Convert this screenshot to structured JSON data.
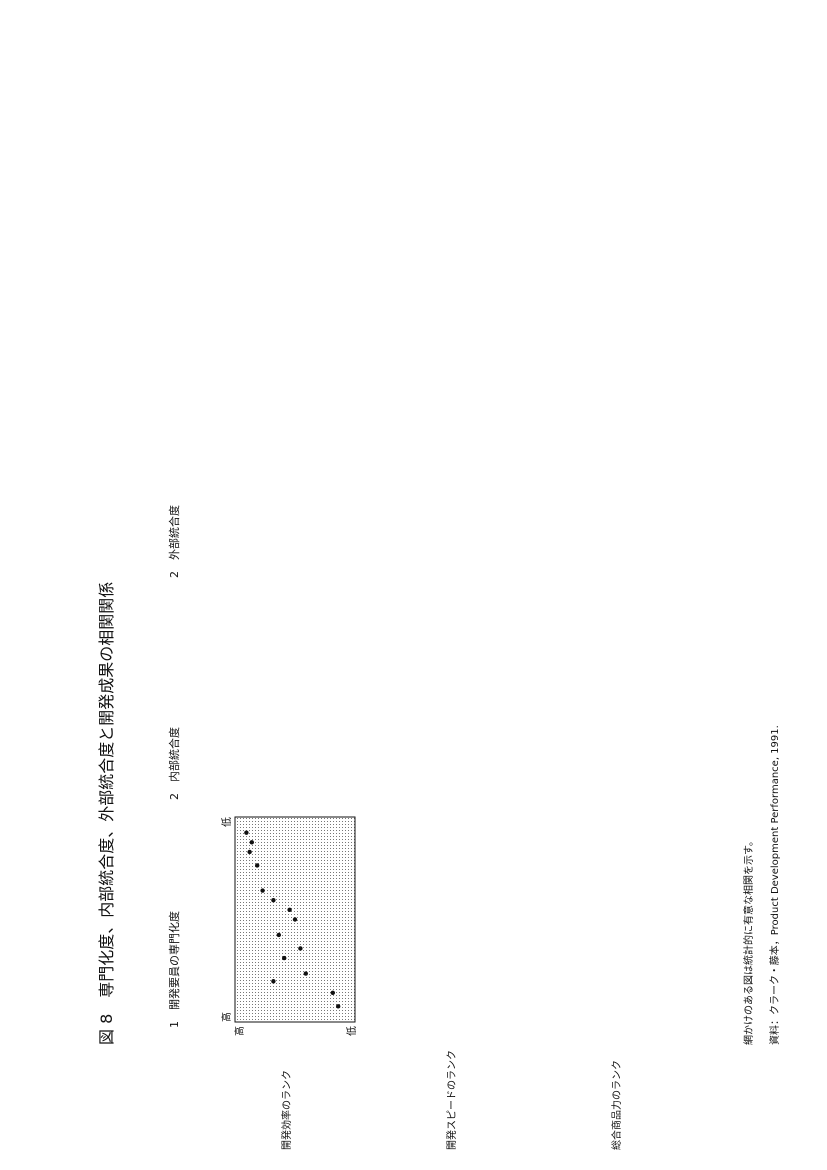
{
  "figure": {
    "title": "図 8　専門化度、内部統合度、外部統合度と開発成果の相関関係",
    "columns": [
      "1　開発要員の専門化度",
      "2　内部統合度",
      "2　外部統合度"
    ],
    "rows": [
      "開発効率のランク",
      "開発スピードのランク",
      "総合商品力のランク"
    ],
    "note": "網かけのある図は統計的に有意な相関を示す。",
    "source": "資料：クラーク・藤本，Product Development Performance, 1991.",
    "tick_high": "高",
    "tick_low": "低"
  },
  "chart_data": [
    {
      "type": "scatter",
      "marker": "circle",
      "shaded": true,
      "row": 0,
      "col": 0,
      "x": [
        0.95,
        0.9,
        0.85,
        0.78,
        0.65,
        0.6,
        0.55,
        0.5,
        0.42,
        0.35,
        0.3,
        0.22,
        0.18,
        0.12,
        0.05
      ],
      "y": [
        0.05,
        0.1,
        0.08,
        0.15,
        0.2,
        0.3,
        0.45,
        0.5,
        0.35,
        0.55,
        0.4,
        0.6,
        0.3,
        0.85,
        0.9
      ]
    }
  ]
}
